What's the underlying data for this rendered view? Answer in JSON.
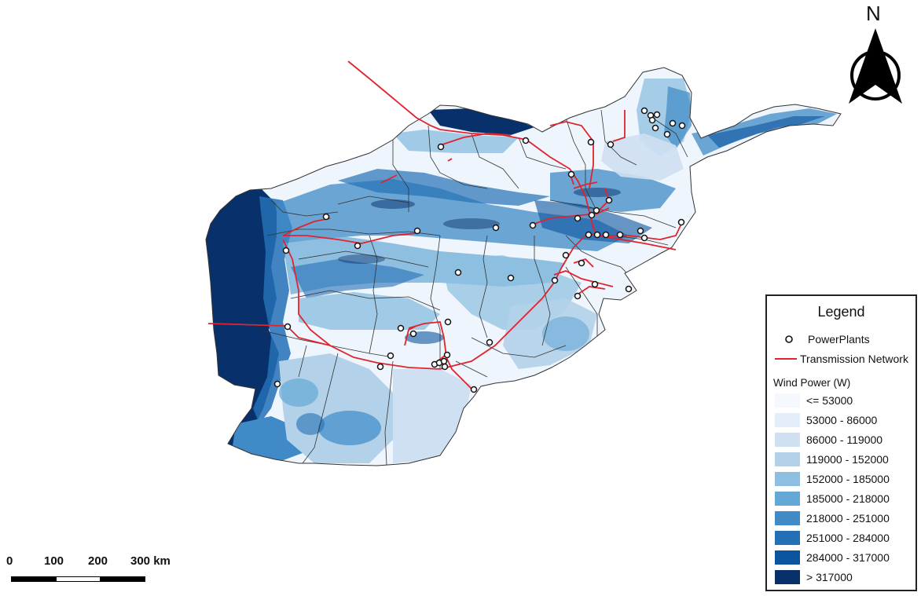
{
  "north_arrow": {
    "label": "N",
    "icon": "north-arrow-icon"
  },
  "legend": {
    "title": "Legend",
    "powerplants_label": "PowerPlants",
    "transmission_label": "Transmission Network",
    "wind_header": "Wind Power (W)",
    "classes": [
      {
        "label": "<= 53000",
        "color": "#f5f9fe"
      },
      {
        "label": "53000 - 86000",
        "color": "#e3eefa"
      },
      {
        "label": "86000 - 119000",
        "color": "#cfe0f2"
      },
      {
        "label": "119000 - 152000",
        "color": "#b3d2e9"
      },
      {
        "label": "152000 - 185000",
        "color": "#8cbfe0"
      },
      {
        "label": "185000 - 218000",
        "color": "#65a8d6"
      },
      {
        "label": "218000 - 251000",
        "color": "#3f8ac7"
      },
      {
        "label": "251000 - 284000",
        "color": "#2370b6"
      },
      {
        "label": "284000 - 317000",
        "color": "#0c549d"
      },
      {
        "label": "> 317000",
        "color": "#08306b"
      }
    ]
  },
  "scale_bar": {
    "labels": [
      "0",
      "100",
      "200",
      "300 km"
    ]
  },
  "colors": {
    "transmission": "#e0242e",
    "boundary": "#333333",
    "plant_fill": "#ffffff"
  }
}
